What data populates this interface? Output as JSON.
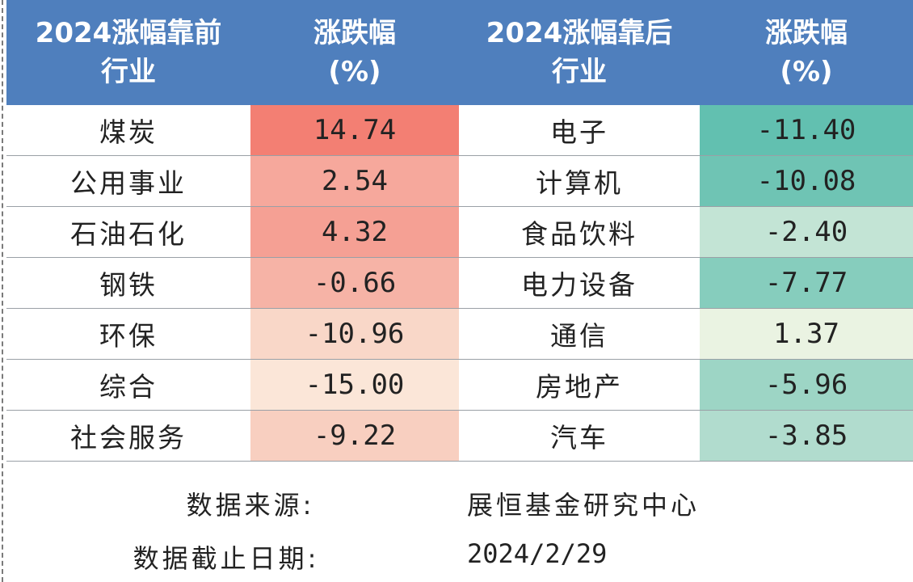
{
  "header": {
    "col1_line1": "2024涨幅靠前",
    "col1_line2": "行业",
    "col2_line1": "涨跌幅",
    "col2_line2": "(%)",
    "col3_line1": "2024涨幅靠后",
    "col3_line2": "行业",
    "col4_line1": "涨跌幅",
    "col4_line2": "(%)"
  },
  "rows": [
    {
      "top_industry": "煤炭",
      "top_change": "14.74",
      "top_color": "#f37f73",
      "bottom_industry": "电子",
      "bottom_change": "-11.40",
      "bottom_color": "#62c0b0"
    },
    {
      "top_industry": "公用事业",
      "top_change": "2.54",
      "top_color": "#f6a89c",
      "bottom_industry": "计算机",
      "bottom_change": "-10.08",
      "bottom_color": "#6fc4b4"
    },
    {
      "top_industry": "石油石化",
      "top_change": "4.32",
      "top_color": "#f5a094",
      "bottom_industry": "食品饮料",
      "bottom_change": "-2.40",
      "bottom_color": "#c3e4d5"
    },
    {
      "top_industry": "钢铁",
      "top_change": "-0.66",
      "top_color": "#f6b3a6",
      "bottom_industry": "电力设备",
      "bottom_change": "-7.77",
      "bottom_color": "#86cdbd"
    },
    {
      "top_industry": "环保",
      "top_change": "-10.96",
      "top_color": "#f9d7c8",
      "bottom_industry": "通信",
      "bottom_change": "1.37",
      "bottom_color": "#eaf3e2"
    },
    {
      "top_industry": "综合",
      "top_change": "-15.00",
      "top_color": "#fbe6d8",
      "bottom_industry": "房地产",
      "bottom_change": "-5.96",
      "bottom_color": "#9dd5c5"
    },
    {
      "top_industry": "社会服务",
      "top_change": "-9.22",
      "top_color": "#f8cfc0",
      "bottom_industry": "汽车",
      "bottom_change": "-3.85",
      "bottom_color": "#b1dcce"
    }
  ],
  "footer": {
    "source_label": "数据来源:",
    "source_value": "展恒基金研究中心",
    "cutoff_label": "数据截止日期:",
    "cutoff_value": "2024/2/29"
  },
  "colors": {
    "header_bg": "#4f7fbd",
    "header_text": "#ffffff"
  }
}
